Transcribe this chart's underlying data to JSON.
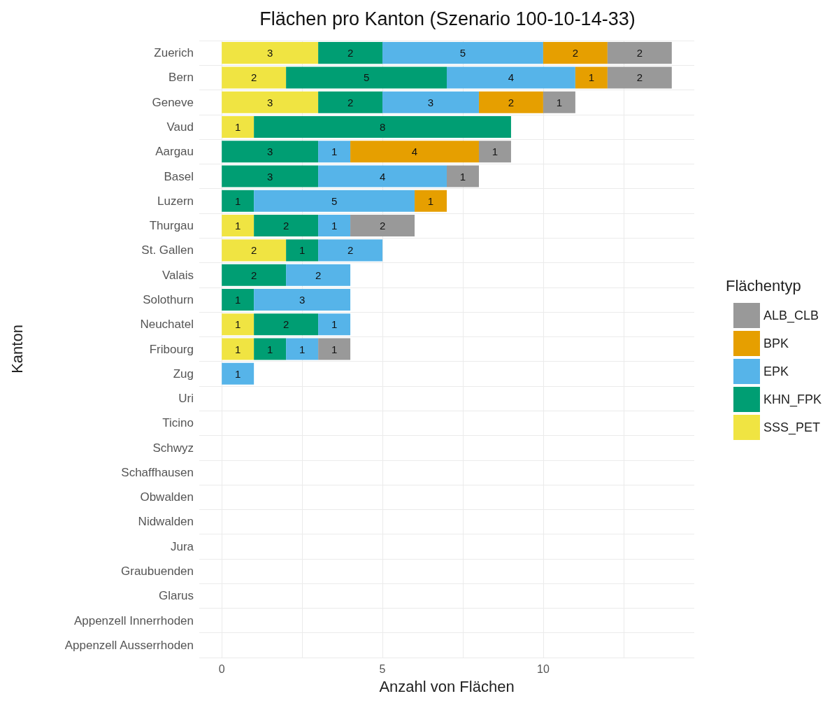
{
  "chart_data": {
    "type": "bar",
    "orientation": "horizontal",
    "stacked": true,
    "title": "Flächen pro Kanton (Szenario 100-10-14-33)",
    "xlabel": "Anzahl von Flächen",
    "ylabel": "Kanton",
    "legend_title": "Flächentyp",
    "legend": "right",
    "grid": true,
    "data_labels": true,
    "categories": [
      "Zuerich",
      "Bern",
      "Geneve",
      "Vaud",
      "Aargau",
      "Basel",
      "Luzern",
      "Thurgau",
      "St. Gallen",
      "Valais",
      "Solothurn",
      "Neuchatel",
      "Fribourg",
      "Zug",
      "Uri",
      "Ticino",
      "Schwyz",
      "Schaffhausen",
      "Obwalden",
      "Nidwalden",
      "Jura",
      "Graubuenden",
      "Glarus",
      "Appenzell Innerrhoden",
      "Appenzell Ausserrhoden"
    ],
    "xlim": [
      -0.7,
      14.7
    ],
    "xticks": [
      0,
      {
        "value": 2.5,
        "label": null
      },
      5,
      {
        "value": 7.5,
        "label": null
      },
      10,
      {
        "value": 12.5,
        "label": null
      }
    ],
    "series": [
      {
        "name": "SSS_PET",
        "color": "#f0e442",
        "values": [
          3,
          2,
          3,
          1,
          null,
          null,
          null,
          1,
          2,
          null,
          null,
          1,
          1,
          null,
          null,
          null,
          null,
          null,
          null,
          null,
          null,
          null,
          null,
          null,
          null
        ]
      },
      {
        "name": "KHN_FPK",
        "color": "#009e73",
        "values": [
          2,
          5,
          2,
          8,
          3,
          3,
          1,
          2,
          1,
          2,
          1,
          2,
          1,
          null,
          null,
          null,
          null,
          null,
          null,
          null,
          null,
          null,
          null,
          null,
          null
        ]
      },
      {
        "name": "EPK",
        "color": "#56b4e9",
        "values": [
          5,
          4,
          3,
          null,
          1,
          4,
          5,
          1,
          2,
          2,
          3,
          1,
          1,
          1,
          null,
          null,
          null,
          null,
          null,
          null,
          null,
          null,
          null,
          null,
          null
        ]
      },
      {
        "name": "BPK",
        "color": "#e69f00",
        "values": [
          2,
          1,
          2,
          null,
          4,
          null,
          1,
          null,
          null,
          null,
          null,
          null,
          null,
          null,
          null,
          null,
          null,
          null,
          null,
          null,
          null,
          null,
          null,
          null,
          null
        ]
      },
      {
        "name": "ALB_CLB",
        "color": "#999999",
        "values": [
          2,
          2,
          1,
          null,
          1,
          1,
          null,
          2,
          null,
          null,
          null,
          null,
          1,
          null,
          null,
          null,
          null,
          null,
          null,
          null,
          null,
          null,
          null,
          null,
          null
        ]
      }
    ]
  }
}
